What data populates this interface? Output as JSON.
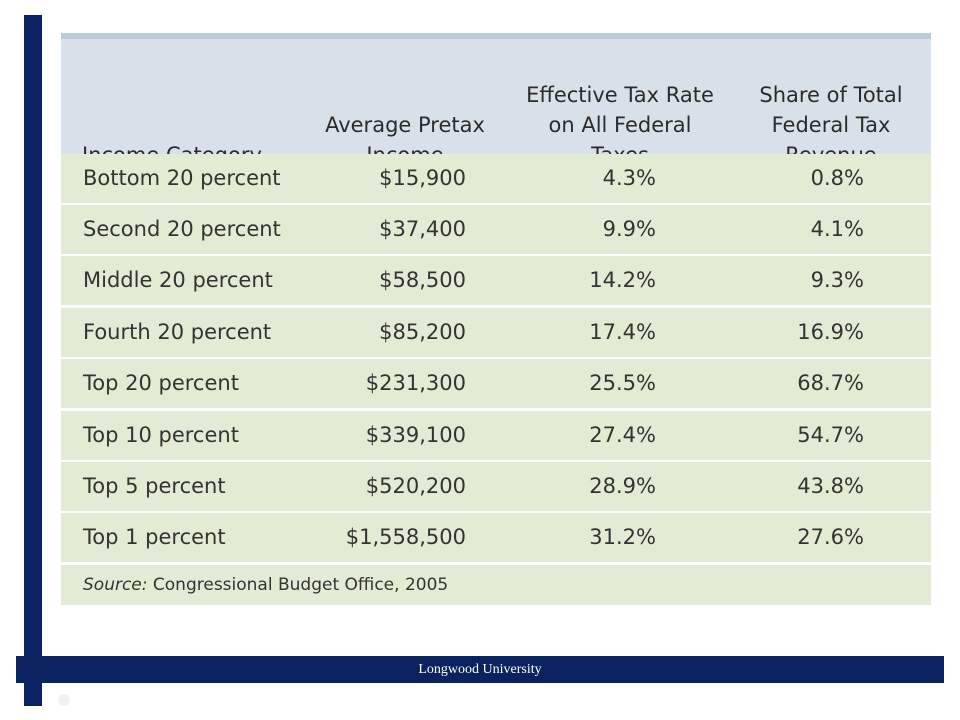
{
  "table": {
    "headers": {
      "category": [
        "Income Category"
      ],
      "income": [
        "Average Pretax",
        "Income"
      ],
      "rate": [
        "Effective Tax Rate",
        "on All Federal",
        "Taxes"
      ],
      "share": [
        "Share of Total",
        "Federal Tax",
        "Revenue"
      ]
    },
    "rows": [
      {
        "category": "Bottom 20 percent",
        "income": "$15,900",
        "rate": "4.3%",
        "share": "0.8%"
      },
      {
        "category": "Second 20 percent",
        "income": "$37,400",
        "rate": "9.9%",
        "share": "4.1%"
      },
      {
        "category": "Middle 20 percent",
        "income": "$58,500",
        "rate": "14.2%",
        "share": "9.3%"
      },
      {
        "category": "Fourth 20 percent",
        "income": "$85,200",
        "rate": "17.4%",
        "share": "16.9%"
      },
      {
        "category": "Top 20 percent",
        "income": "$231,300",
        "rate": "25.5%",
        "share": "68.7%"
      },
      {
        "category": "Top 10 percent",
        "income": "$339,100",
        "rate": "27.4%",
        "share": "54.7%"
      },
      {
        "category": "Top 5 percent",
        "income": "$520,200",
        "rate": "28.9%",
        "share": "43.8%"
      },
      {
        "category": "Top 1 percent",
        "income": "$1,558,500",
        "rate": "31.2%",
        "share": "27.6%"
      }
    ],
    "source_label": "Source:",
    "source_text": "Congressional Budget Office, 2005"
  },
  "footer": {
    "text": "Longwood University"
  },
  "colors": {
    "brand_navy": "#0b2261",
    "header_bg": "#d8e1ea",
    "row_bg": "#e2ecd4"
  }
}
